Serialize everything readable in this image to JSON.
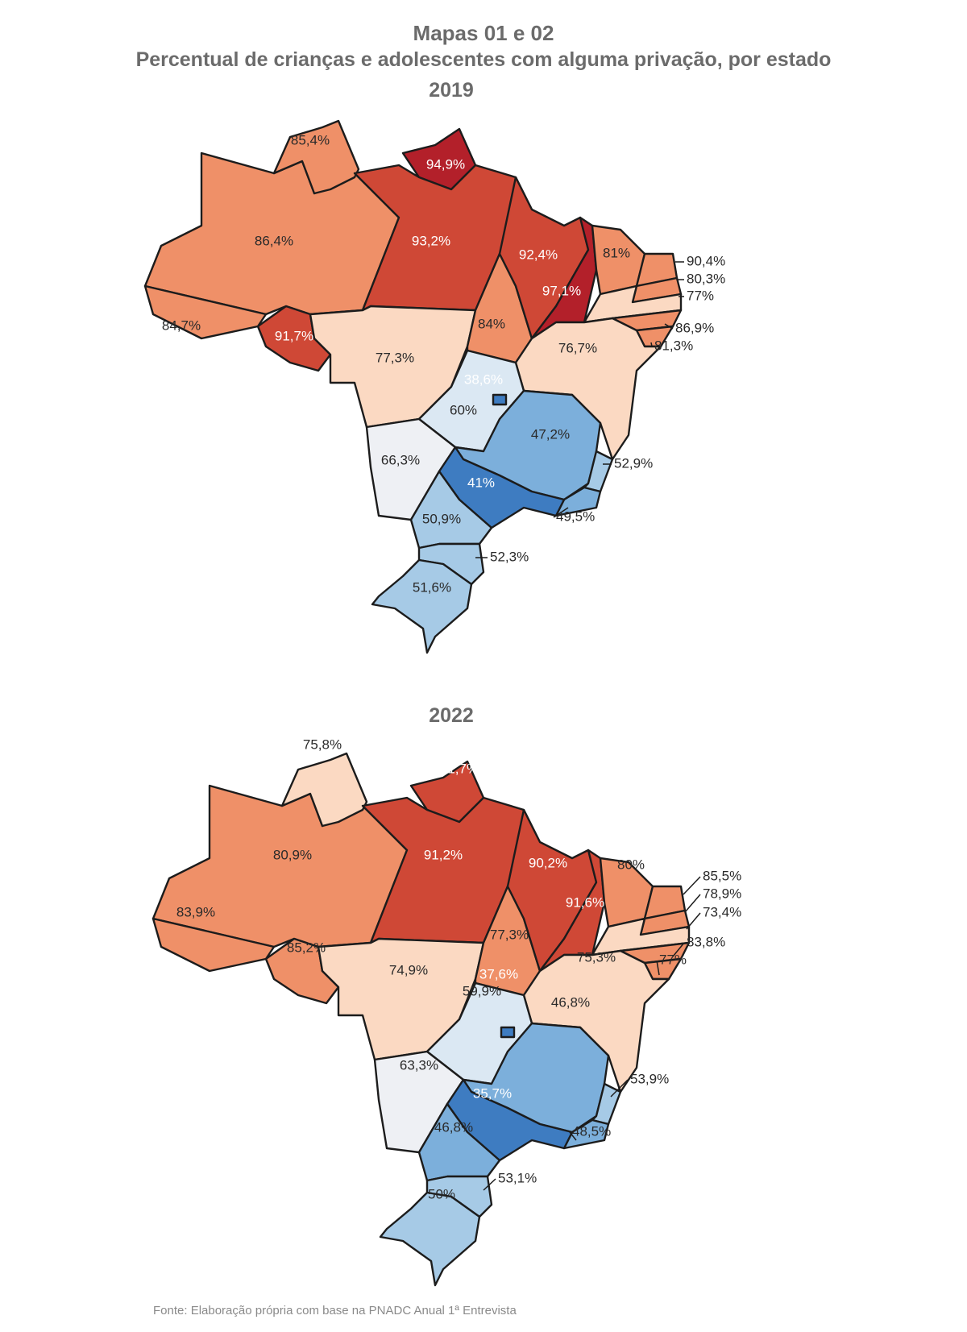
{
  "title": "Mapas 01 e 02",
  "subtitle": "Percentual de crianças e adolescentes com alguma privação, por estado",
  "source": "Fonte: Elaboração própria com base na PNADC Anual 1ª Entrevista",
  "colors": {
    "dark_red": "#b3202a",
    "red": "#cf4836",
    "orange": "#ef9068",
    "peach": "#fbd9c2",
    "white": "#eef0f4",
    "pale_blue": "#dbe8f3",
    "light_blue": "#a6cae6",
    "mid_blue": "#7cafdb",
    "blue": "#3e7cc1"
  },
  "maps": [
    {
      "year": "2019",
      "states": {
        "RR": {
          "value": "85,4%",
          "color": "#ef9068"
        },
        "AP": {
          "value": "94,9%",
          "color": "#b3202a"
        },
        "AM": {
          "value": "86,4%",
          "color": "#ef9068"
        },
        "PA": {
          "value": "93,2%",
          "color": "#cf4836"
        },
        "AC": {
          "value": "84,7%",
          "color": "#ef9068"
        },
        "RO": {
          "value": "91,7%",
          "color": "#cf4836"
        },
        "MT": {
          "value": "77,3%",
          "color": "#fbd9c2"
        },
        "TO": {
          "value": "84%",
          "color": "#ef9068"
        },
        "MA": {
          "value": "92,4%",
          "color": "#cf4836"
        },
        "PI": {
          "value": "97,1%",
          "color": "#b3202a"
        },
        "CE": {
          "value": "81%",
          "color": "#ef9068"
        },
        "RN": {
          "value": "90,4%",
          "color": "#ef9068"
        },
        "PB": {
          "value": "80,3%",
          "color": "#ef9068"
        },
        "PE": {
          "value": "77%",
          "color": "#fbd9c2"
        },
        "AL": {
          "value": "86,9%",
          "color": "#ef9068"
        },
        "SE": {
          "value": "81,3%",
          "color": "#ef9068"
        },
        "BA": {
          "value": "76,7%",
          "color": "#fbd9c2"
        },
        "GO": {
          "value": "60%",
          "color": "#dbe8f3"
        },
        "DF": {
          "value": "38,6%",
          "color": "#3e7cc1"
        },
        "MS": {
          "value": "66,3%",
          "color": "#eef0f4"
        },
        "MG": {
          "value": "47,2%",
          "color": "#7cafdb"
        },
        "ES": {
          "value": "52,9%",
          "color": "#a6cae6"
        },
        "RJ": {
          "value": "49,5%",
          "color": "#7cafdb"
        },
        "SP": {
          "value": "41%",
          "color": "#3e7cc1"
        },
        "PR": {
          "value": "50,9%",
          "color": "#a6cae6"
        },
        "SC": {
          "value": "52,3%",
          "color": "#a6cae6"
        },
        "RS": {
          "value": "51,6%",
          "color": "#a6cae6"
        }
      }
    },
    {
      "year": "2022",
      "states": {
        "RR": {
          "value": "75,8%",
          "color": "#fbd9c2"
        },
        "AP": {
          "value": "91,7%",
          "color": "#cf4836"
        },
        "AM": {
          "value": "80,9%",
          "color": "#ef9068"
        },
        "PA": {
          "value": "91,2%",
          "color": "#cf4836"
        },
        "AC": {
          "value": "83,9%",
          "color": "#ef9068"
        },
        "RO": {
          "value": "85,2%",
          "color": "#ef9068"
        },
        "MT": {
          "value": "74,9%",
          "color": "#fbd9c2"
        },
        "TO": {
          "value": "77,3%",
          "color": "#ef9068"
        },
        "MA": {
          "value": "90,2%",
          "color": "#cf4836"
        },
        "PI": {
          "value": "91,6%",
          "color": "#cf4836"
        },
        "CE": {
          "value": "80%",
          "color": "#ef9068"
        },
        "RN": {
          "value": "85,5%",
          "color": "#ef9068"
        },
        "PB": {
          "value": "78,9%",
          "color": "#ef9068"
        },
        "PE": {
          "value": "73,4%",
          "color": "#fbd9c2"
        },
        "AL": {
          "value": "83,8%",
          "color": "#ef9068"
        },
        "SE": {
          "value": "77%",
          "color": "#ef9068"
        },
        "BA": {
          "value": "75,3%",
          "color": "#fbd9c2"
        },
        "GO": {
          "value": "59,9%",
          "color": "#dbe8f3"
        },
        "DF": {
          "value": "37,6%",
          "color": "#3e7cc1"
        },
        "MS": {
          "value": "63,3%",
          "color": "#eef0f4"
        },
        "MG": {
          "value": "46,8%",
          "color": "#7cafdb"
        },
        "ES": {
          "value": "53,9%",
          "color": "#a6cae6"
        },
        "RJ": {
          "value": "48,5%",
          "color": "#7cafdb"
        },
        "SP": {
          "value": "35,7%",
          "color": "#3e7cc1"
        },
        "PR": {
          "value": "46,8%",
          "color": "#7cafdb"
        },
        "SC": {
          "value": "53,1%",
          "color": "#a6cae6"
        },
        "RS": {
          "value": "50%",
          "color": "#a6cae6"
        }
      }
    }
  ]
}
